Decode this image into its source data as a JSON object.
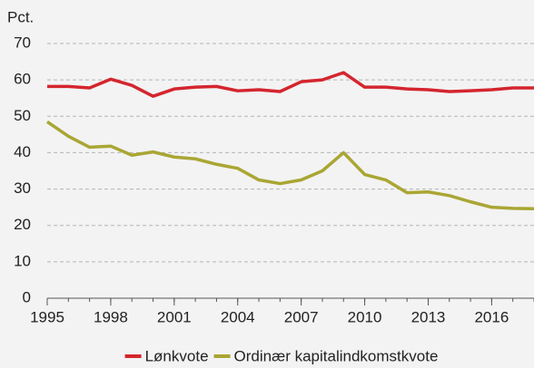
{
  "chart_data": {
    "type": "line",
    "y_label": "Pct.",
    "x": [
      1995,
      1996,
      1997,
      1998,
      1999,
      2000,
      2001,
      2002,
      2003,
      2004,
      2005,
      2006,
      2007,
      2008,
      2009,
      2010,
      2011,
      2012,
      2013,
      2014,
      2015,
      2016,
      2017,
      2018
    ],
    "series": [
      {
        "name": "Lønkvote",
        "color": "#d4252e",
        "values": [
          58.2,
          58.2,
          57.8,
          60.2,
          58.5,
          55.5,
          57.5,
          58,
          58.2,
          57,
          57.3,
          56.8,
          59.5,
          60,
          62,
          58,
          58,
          57.5,
          57.3,
          56.8,
          57,
          57.3,
          57.8,
          57.8
        ]
      },
      {
        "name": "Ordinær kapitalindkomstkvote",
        "color": "#a9a634",
        "values": [
          48.5,
          44.5,
          41.5,
          41.8,
          39.3,
          40.2,
          38.8,
          38.3,
          36.8,
          35.7,
          32.5,
          31.5,
          32.5,
          35,
          40,
          34,
          32.5,
          29,
          29.2,
          28.2,
          26.5,
          25,
          24.7,
          24.6
        ]
      }
    ],
    "xlim": [
      1995,
      2018
    ],
    "xticks": [
      1995,
      1998,
      2001,
      2004,
      2007,
      2010,
      2013,
      2016
    ],
    "ylim": [
      0,
      70
    ],
    "yticks": [
      0,
      10,
      20,
      30,
      40,
      50,
      60,
      70
    ],
    "grid": true,
    "legend": "bottom"
  }
}
